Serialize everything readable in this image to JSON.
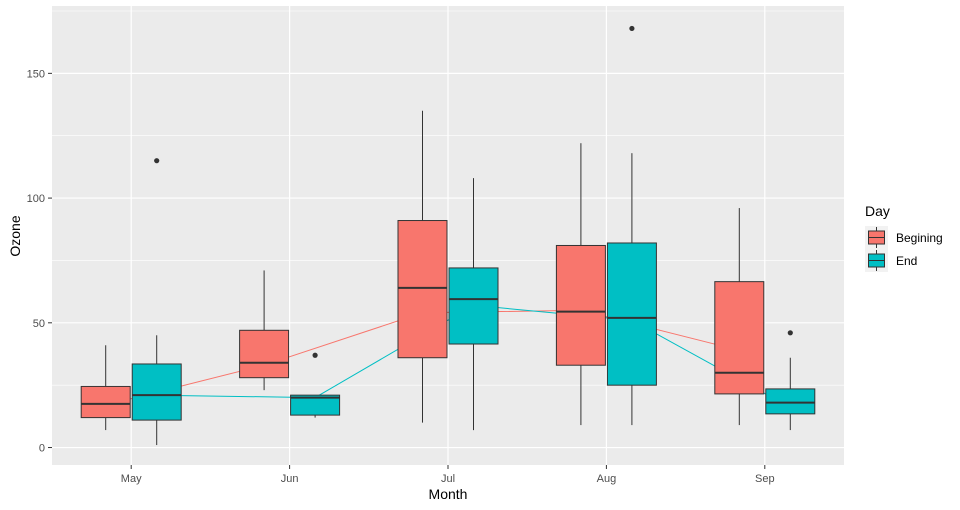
{
  "chart_data": {
    "type": "box",
    "xlabel": "Month",
    "ylabel": "Ozone",
    "ylim": [
      -7,
      177
    ],
    "y_ticks": [
      0,
      50,
      100,
      150
    ],
    "categories": [
      "May",
      "Jun",
      "Jul",
      "Aug",
      "Sep"
    ],
    "grid": true,
    "legend": {
      "title": "Day",
      "position": "right"
    },
    "series": [
      {
        "name": "Begining",
        "color": "#F8766D",
        "boxes": [
          {
            "category": "May",
            "min": 7,
            "q1": 12,
            "median": 17.5,
            "q3": 24.5,
            "max": 41,
            "outliers": [],
            "mean": 17
          },
          {
            "category": "Jun",
            "min": 23,
            "q1": 28,
            "median": 34,
            "q3": 47,
            "max": 71,
            "outliers": [],
            "mean": 33
          },
          {
            "category": "Jul",
            "min": 10,
            "q1": 36,
            "median": 64,
            "q3": 91,
            "max": 135,
            "outliers": [],
            "mean": 54
          },
          {
            "category": "Aug",
            "min": 9,
            "q1": 33,
            "median": 54.5,
            "q3": 81,
            "max": 122,
            "outliers": [],
            "mean": 55
          },
          {
            "category": "Sep",
            "min": 9,
            "q1": 21.5,
            "median": 30,
            "q3": 66.5,
            "max": 96,
            "outliers": [],
            "mean": 39
          }
        ]
      },
      {
        "name": "End",
        "color": "#00BFC4",
        "boxes": [
          {
            "category": "May",
            "min": 1,
            "q1": 11,
            "median": 21,
            "q3": 33.5,
            "max": 45,
            "outliers": [
              115
            ],
            "mean": 21
          },
          {
            "category": "Jun",
            "min": 12,
            "q1": 13,
            "median": 20,
            "q3": 21,
            "max": 21,
            "outliers": [
              37
            ],
            "mean": 20
          },
          {
            "category": "Jul",
            "min": 7,
            "q1": 41.5,
            "median": 59.5,
            "q3": 72,
            "max": 108,
            "outliers": [],
            "mean": 57
          },
          {
            "category": "Aug",
            "min": 9,
            "q1": 25,
            "median": 52,
            "q3": 82,
            "max": 118,
            "outliers": [
              168
            ],
            "mean": 51
          },
          {
            "category": "Sep",
            "min": 7,
            "q1": 13.5,
            "median": 18,
            "q3": 23.5,
            "max": 36,
            "outliers": [
              46
            ],
            "mean": 16
          }
        ]
      }
    ]
  }
}
